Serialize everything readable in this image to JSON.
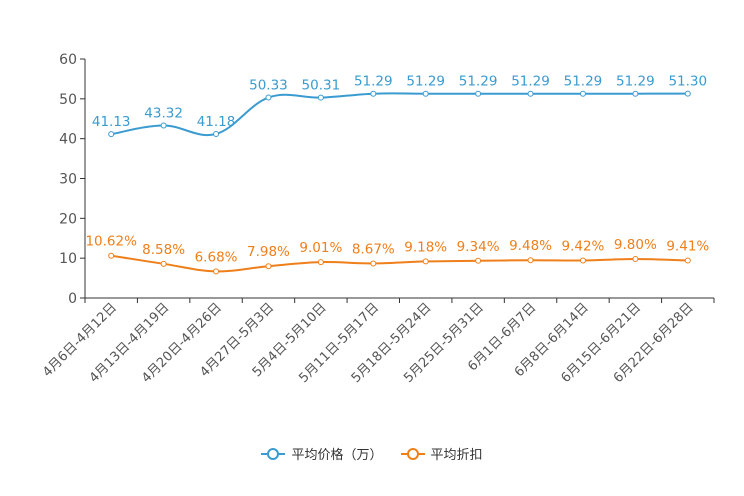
{
  "chart_data": {
    "type": "line",
    "title": "",
    "xlabel": "",
    "ylabel": "",
    "ylim": [
      0,
      60
    ],
    "yticks": [
      0,
      10,
      20,
      30,
      40,
      50,
      60
    ],
    "categories": [
      "4月6日-4月12日",
      "4月13日-4月19日",
      "4月20日-4月26日",
      "4月27日-5月3日",
      "5月4日-5月10日",
      "5月11日-5月17日",
      "5月18日-5月24日",
      "5月25日-5月31日",
      "6月1日-6月7日",
      "6月8日-6月14日",
      "6月15日-6月21日",
      "6月22日-6月28日"
    ],
    "series": [
      {
        "name": "平均价格（万）",
        "color": "#3a9bd0",
        "values": [
          41.13,
          43.32,
          41.18,
          50.33,
          50.31,
          51.29,
          51.29,
          51.29,
          51.29,
          51.29,
          51.29,
          51.3
        ],
        "labels": [
          "41.13",
          "43.32",
          "41.18",
          "50.33",
          "50.31",
          "51.29",
          "51.29",
          "51.29",
          "51.29",
          "51.29",
          "51.29",
          "51.30"
        ]
      },
      {
        "name": "平均折扣",
        "color": "#ef7f1a",
        "values": [
          10.62,
          8.58,
          6.68,
          7.98,
          9.01,
          8.67,
          9.18,
          9.34,
          9.48,
          9.42,
          9.8,
          9.41
        ],
        "labels": [
          "10.62%",
          "8.58%",
          "6.68%",
          "7.98%",
          "9.01%",
          "8.67%",
          "9.18%",
          "9.34%",
          "9.48%",
          "9.42%",
          "9.80%",
          "9.41%"
        ]
      }
    ],
    "legend_position": "bottom-center"
  }
}
